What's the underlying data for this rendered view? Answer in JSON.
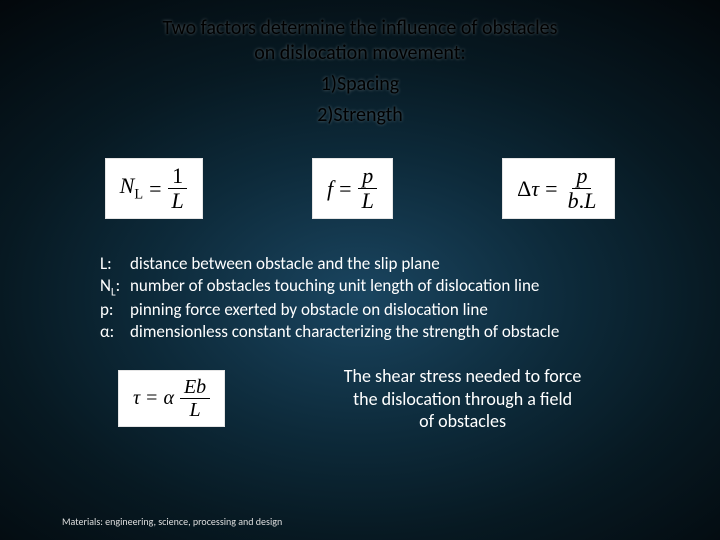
{
  "colors": {
    "bg_inner": "#1a4560",
    "bg_mid": "#0d2a3a",
    "bg_outer": "#020508",
    "text_light": "#ffffff",
    "text_dark": "#000000",
    "eq_bg": "#ffffff"
  },
  "title": {
    "line1": "Two factors determine the influence of obstacles",
    "line2": "on dislocation movement:",
    "item1": "1)Spacing",
    "item2": "2)Strength"
  },
  "equations": {
    "eq1": {
      "lhs_var": "N",
      "lhs_sub": "L",
      "rhs_num": "1",
      "rhs_den": "L"
    },
    "eq2": {
      "lhs": "f",
      "rhs_num": "p",
      "rhs_den": "L"
    },
    "eq3": {
      "lhs_delta": "Δ",
      "lhs_var": "τ",
      "rhs_num": "p",
      "rhs_den1": "b",
      "rhs_den_dot": ".",
      "rhs_den2": "L"
    },
    "eq4": {
      "lhs": "τ",
      "rhs_coeff": "α",
      "rhs_num": "Eb",
      "rhs_den": "L"
    }
  },
  "defs": [
    {
      "sym": "L:",
      "text": "distance between obstacle and the slip plane"
    },
    {
      "sym_var": "N",
      "sym_sub": "L",
      "sym_tail": ":",
      "text": "number of obstacles touching unit length of dislocation line"
    },
    {
      "sym": "p:",
      "text": "pinning force exerted by obstacle on dislocation line"
    },
    {
      "sym": "α:",
      "text": "dimensionless constant characterizing the strength of obstacle"
    }
  ],
  "shear": {
    "line1": "The shear stress needed to force",
    "line2": "the dislocation through a field",
    "line3": "of obstacles"
  },
  "footer": "Materials: engineering, science, processing and design"
}
